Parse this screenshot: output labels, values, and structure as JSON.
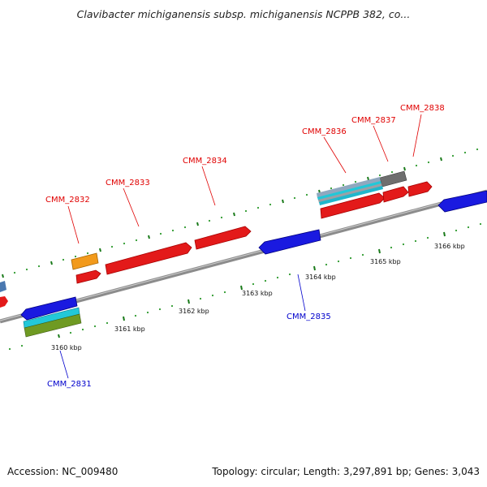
{
  "header": {
    "title": "Clavibacter michiganensis subsp. michiganensis NCPPB 382, co..."
  },
  "footer": {
    "accession": "Accession: NC_009480",
    "summary": "Topology: circular; Length: 3,297,891 bp; Genes: 3,043"
  },
  "scale_labels": [
    "3160 kbp",
    "3161 kbp",
    "3162 kbp",
    "3163 kbp",
    "3164 kbp",
    "3165 kbp",
    "3166 kbp"
  ],
  "forward_gene_labels": [
    "CMM_2832",
    "CMM_2833",
    "CMM_2834",
    "CMM_2836",
    "CMM_2837",
    "CMM_2838"
  ],
  "reverse_gene_labels": [
    "CMM_2831",
    "CMM_2835"
  ],
  "colors": {
    "forward_label": "#e00000",
    "reverse_label": "#0000cc",
    "backbone": "#8c8c8c",
    "tick_major": "#1a7a1a",
    "tick_minor": "#2e9a2e",
    "cds_forward": "#e31a1a",
    "cds_reverse": "#1a1ae0",
    "orange_feature": "#f29a1c",
    "grey_feature": "#6e6e6e",
    "cyan_feature": "#22c8d8",
    "olive_feature": "#6f9a22"
  }
}
